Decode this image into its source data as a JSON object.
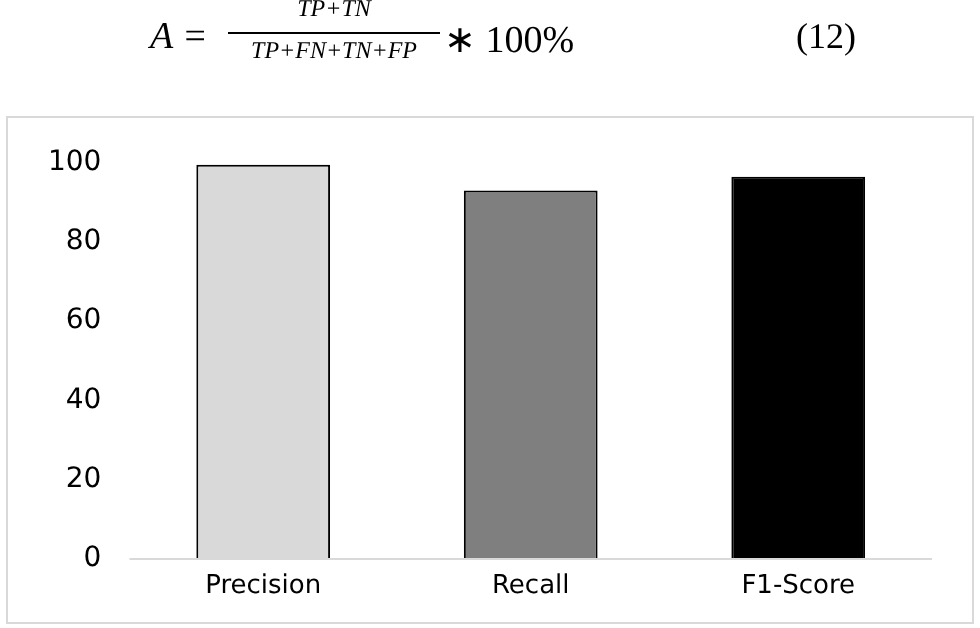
{
  "chart_data": {
    "type": "bar",
    "categories": [
      "Precision",
      "Recall",
      "F1-Score"
    ],
    "values": [
      99.5,
      93,
      96.5
    ],
    "colors": [
      "#d9d9d9",
      "#7f7f7f",
      "#000000"
    ],
    "ylim": [
      0,
      100
    ],
    "yticks": [
      0,
      20,
      40,
      60,
      80,
      100
    ],
    "grid": false,
    "legend": false,
    "annotations": [
      "A =",
      "TP+TN",
      "TP+FN+TN+FP",
      "∗ 100%",
      "(12)"
    ]
  }
}
